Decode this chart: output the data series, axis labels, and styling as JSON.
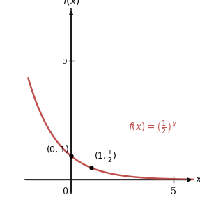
{
  "curve_color": "#c0504d",
  "curve_linewidth": 1.8,
  "point1": [
    0,
    1
  ],
  "point2": [
    1,
    0.5
  ],
  "func_label_color": "#c0504d",
  "xlim": [
    -2.3,
    6.0
  ],
  "ylim": [
    -0.6,
    7.2
  ],
  "background_color": "#ffffff",
  "axis_color": "#111111",
  "font_size": 9,
  "label_font_size": 10
}
